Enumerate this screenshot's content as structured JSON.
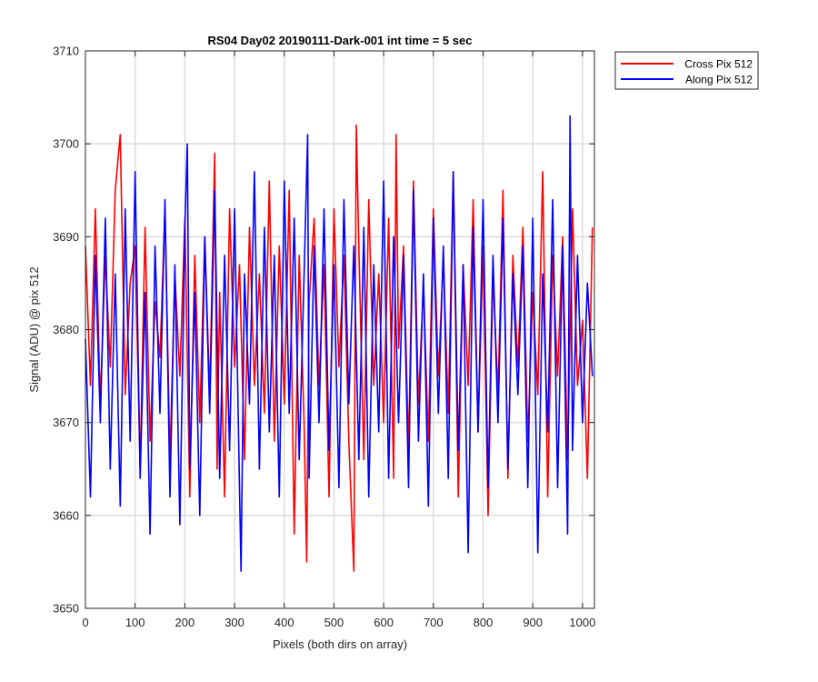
{
  "chart_data": {
    "type": "line",
    "title": "RS04 Day02 20190111-Dark-001 int time = 5 sec",
    "xlabel": "Pixels (both dirs on array)",
    "ylabel": "Signal (ADU) @ pix 512",
    "xlim": [
      0,
      1024
    ],
    "ylim": [
      3650,
      3710
    ],
    "xticks": [
      0,
      100,
      200,
      300,
      400,
      500,
      600,
      700,
      800,
      900,
      1000
    ],
    "yticks": [
      3650,
      3660,
      3670,
      3680,
      3690,
      3700,
      3710
    ],
    "grid": true,
    "legend_position": "outside top-right",
    "series": [
      {
        "name": "Cross Pix 512",
        "color": "#ff0000",
        "x": [
          0,
          10,
          20,
          30,
          40,
          50,
          60,
          70,
          80,
          90,
          100,
          110,
          120,
          130,
          140,
          150,
          160,
          170,
          180,
          190,
          200,
          210,
          220,
          230,
          240,
          250,
          260,
          265,
          270,
          280,
          290,
          300,
          310,
          320,
          330,
          340,
          350,
          360,
          370,
          380,
          390,
          400,
          410,
          420,
          430,
          440,
          445,
          450,
          460,
          470,
          480,
          490,
          500,
          510,
          520,
          530,
          540,
          545,
          550,
          560,
          570,
          580,
          590,
          600,
          610,
          620,
          625,
          630,
          640,
          650,
          660,
          670,
          680,
          690,
          700,
          710,
          720,
          730,
          740,
          750,
          760,
          770,
          780,
          790,
          800,
          810,
          820,
          830,
          840,
          850,
          860,
          870,
          880,
          890,
          900,
          910,
          920,
          930,
          940,
          950,
          960,
          970,
          980,
          990,
          1000,
          1010,
          1020
        ],
        "values": [
          3689,
          3674,
          3693,
          3672,
          3688,
          3676,
          3695,
          3701,
          3673,
          3685,
          3689,
          3665,
          3691,
          3668,
          3683,
          3677,
          3693,
          3666,
          3686,
          3675,
          3692,
          3662,
          3688,
          3670,
          3690,
          3673,
          3699,
          3665,
          3684,
          3662,
          3693,
          3676,
          3687,
          3666,
          3691,
          3674,
          3686,
          3671,
          3696,
          3668,
          3689,
          3672,
          3695,
          3658,
          3688,
          3670,
          3655,
          3683,
          3692,
          3674,
          3687,
          3662,
          3693,
          3676,
          3688,
          3668,
          3654,
          3702,
          3689,
          3666,
          3694,
          3674,
          3686,
          3670,
          3692,
          3664,
          3701,
          3678,
          3689,
          3667,
          3696,
          3672,
          3685,
          3668,
          3693,
          3675,
          3688,
          3671,
          3697,
          3662,
          3687,
          3674,
          3694,
          3669,
          3689,
          3660,
          3686,
          3673,
          3695,
          3664,
          3688,
          3676,
          3691,
          3668,
          3684,
          3673,
          3697,
          3662,
          3688,
          3675,
          3690,
          3666,
          3693,
          3674,
          3681,
          3664,
          3691
        ]
      },
      {
        "name": "Along Pix 512",
        "color": "#0000ff",
        "x": [
          0,
          10,
          20,
          30,
          40,
          50,
          60,
          70,
          80,
          90,
          100,
          110,
          120,
          130,
          140,
          150,
          160,
          170,
          180,
          190,
          200,
          205,
          210,
          220,
          230,
          240,
          250,
          260,
          270,
          280,
          290,
          300,
          310,
          313,
          320,
          330,
          340,
          350,
          360,
          370,
          380,
          390,
          400,
          410,
          420,
          430,
          440,
          447,
          450,
          460,
          470,
          480,
          490,
          500,
          510,
          520,
          530,
          540,
          550,
          560,
          570,
          580,
          590,
          600,
          610,
          620,
          630,
          640,
          650,
          660,
          670,
          680,
          690,
          700,
          710,
          720,
          730,
          740,
          750,
          760,
          770,
          780,
          790,
          800,
          810,
          820,
          830,
          840,
          850,
          860,
          870,
          880,
          890,
          900,
          910,
          920,
          930,
          940,
          950,
          960,
          970,
          975,
          980,
          990,
          1000,
          1010,
          1020
        ],
        "values": [
          3679,
          3662,
          3688,
          3670,
          3692,
          3665,
          3686,
          3661,
          3693,
          3668,
          3697,
          3664,
          3684,
          3658,
          3689,
          3671,
          3694,
          3662,
          3687,
          3659,
          3691,
          3700,
          3665,
          3684,
          3660,
          3690,
          3671,
          3695,
          3664,
          3688,
          3667,
          3693,
          3663,
          3654,
          3686,
          3672,
          3697,
          3665,
          3691,
          3669,
          3688,
          3662,
          3696,
          3671,
          3692,
          3666,
          3686,
          3701,
          3664,
          3689,
          3670,
          3693,
          3667,
          3687,
          3663,
          3694,
          3672,
          3689,
          3666,
          3691,
          3662,
          3687,
          3669,
          3696,
          3664,
          3690,
          3670,
          3688,
          3663,
          3695,
          3668,
          3686,
          3661,
          3692,
          3671,
          3689,
          3664,
          3697,
          3667,
          3687,
          3656,
          3691,
          3669,
          3694,
          3663,
          3688,
          3670,
          3692,
          3665,
          3686,
          3673,
          3689,
          3663,
          3692,
          3656,
          3686,
          3669,
          3694,
          3663,
          3689,
          3658,
          3703,
          3667,
          3688,
          3670,
          3685,
          3675
        ]
      }
    ]
  }
}
